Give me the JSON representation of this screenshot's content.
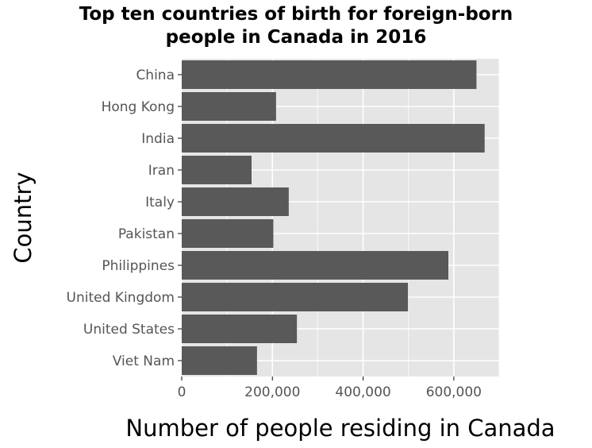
{
  "chart_data": {
    "type": "bar",
    "orientation": "horizontal",
    "title": "Top ten countries of birth for foreign-born\npeople in Canada in 2016",
    "xlabel": "Number of people residing in Canada",
    "ylabel": "Country",
    "categories": [
      "China",
      "Hong Kong",
      "India",
      "Iran",
      "Italy",
      "Pakistan",
      "Philippines",
      "United Kingdom",
      "United States",
      "Viet Nam"
    ],
    "values": [
      650000,
      208000,
      668000,
      154000,
      236000,
      202000,
      588000,
      499000,
      254000,
      166000
    ],
    "x_ticks": [
      0,
      200000,
      400000,
      600000
    ],
    "x_tick_labels": [
      "0",
      "200,000",
      "400,000",
      "600,000"
    ],
    "xlim": [
      0,
      700000
    ],
    "grid": true,
    "bar_color": "#595959",
    "panel_background": "#e5e5e5",
    "grid_color": "#ffffff"
  }
}
